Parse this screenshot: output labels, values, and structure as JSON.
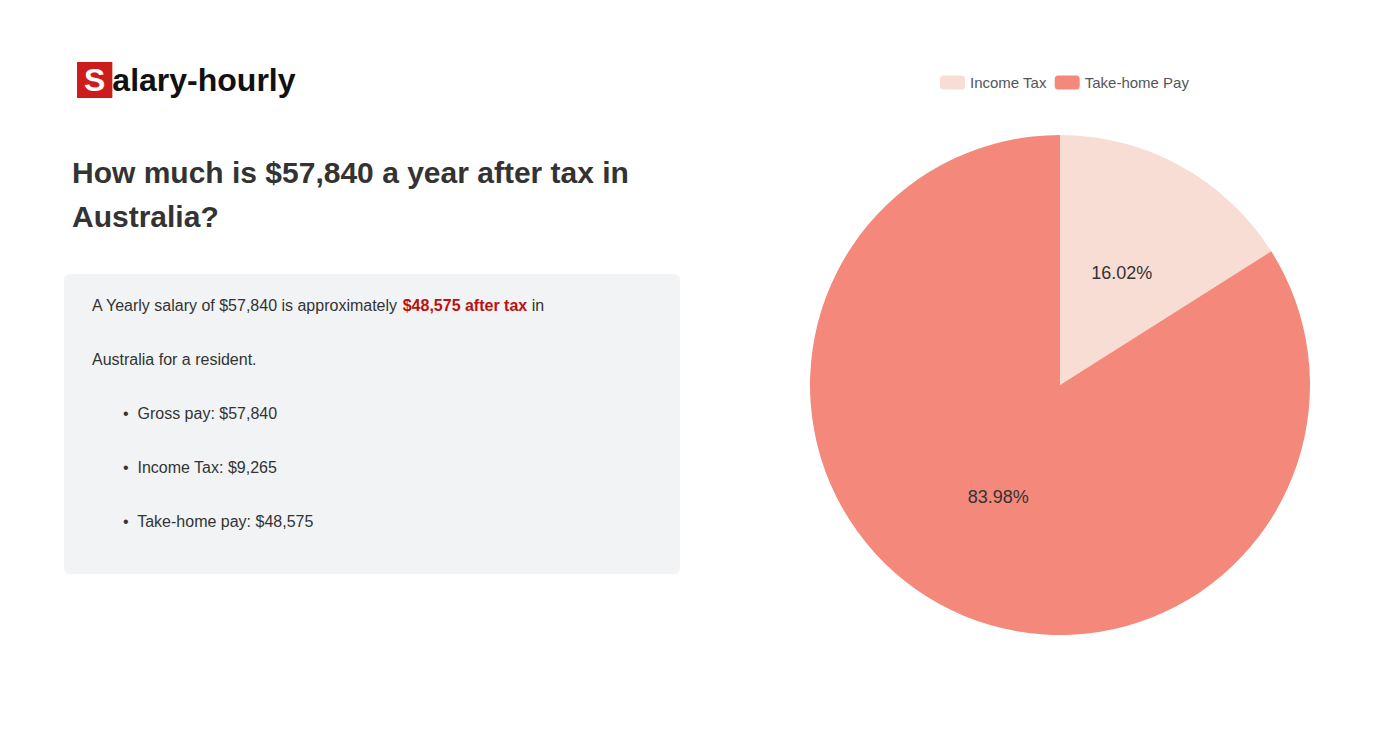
{
  "chart_data": {
    "type": "pie",
    "title": "How much is $57,840 a year after tax in\nAustralia?",
    "categories": [
      "Income Tax",
      "Take-home Pay"
    ],
    "values": [
      16.02,
      83.98
    ],
    "value_labels": [
      "16.02%",
      "83.98%"
    ],
    "colors": [
      "#f8ddd5",
      "#f4897b"
    ],
    "data_labels": true,
    "legend": "top",
    "annotations": [
      [
        {
          "text": "S",
          "color": "#ffffff",
          "background": "#cc1c1c"
        },
        {
          "text": "alary-hourly",
          "color": "#111111"
        }
      ],
      [
        {
          "text": "A Yearly salary of $57,840 is approximately "
        },
        {
          "text": "$48,575 after tax",
          "color": "#bb1111"
        },
        {
          "text": " in"
        }
      ],
      [
        {
          "text": "Australia for a resident."
        }
      ],
      [
        {
          "text": "•  Gross pay: $57,840"
        }
      ],
      [
        {
          "text": "•  Income Tax: $9,265"
        }
      ],
      [
        {
          "text": "•  Take-home pay: $48,575"
        }
      ]
    ]
  }
}
